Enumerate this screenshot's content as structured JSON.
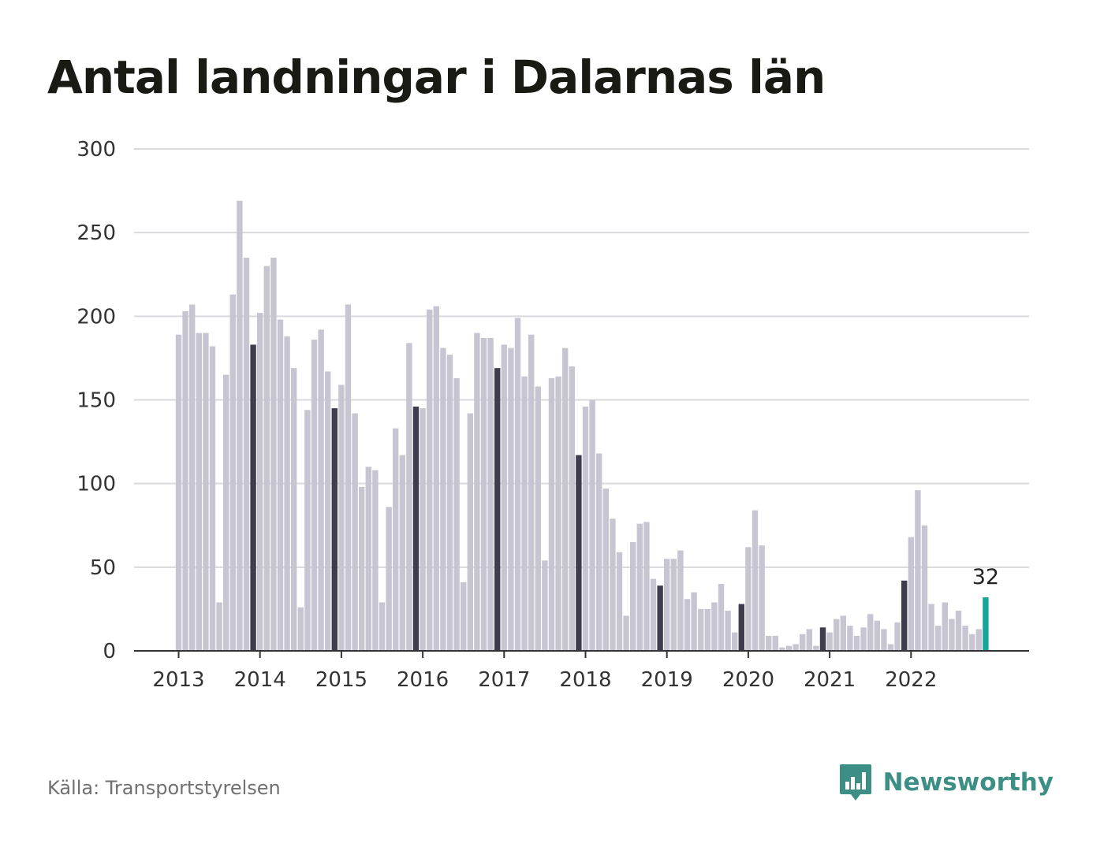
{
  "header": {
    "title": "Antal landningar i Dalarnas län"
  },
  "footer": {
    "source": "Källa: Transportstyrelsen",
    "brand": "Newsworthy"
  },
  "colors": {
    "bar": "#c6c5d1",
    "bar_december": "#3f3d4d",
    "bar_latest": "#16a596",
    "grid": "#d9d9de",
    "axis": "#333333",
    "brand": "#3d8f86"
  },
  "chart_data": {
    "type": "bar",
    "title": "Antal landningar i Dalarnas län",
    "xlabel": "",
    "ylabel": "",
    "ylim": [
      0,
      300
    ],
    "yticks": [
      0,
      50,
      100,
      150,
      200,
      250,
      300
    ],
    "grid": true,
    "legend": "none",
    "year_labels": [
      "2013",
      "2014",
      "2015",
      "2016",
      "2017",
      "2018",
      "2019",
      "2020",
      "2021",
      "2022"
    ],
    "annotation": {
      "label": "32",
      "category": "2022-12"
    },
    "categories": [
      "2013-01",
      "2013-02",
      "2013-03",
      "2013-04",
      "2013-05",
      "2013-06",
      "2013-07",
      "2013-08",
      "2013-09",
      "2013-10",
      "2013-11",
      "2013-12",
      "2014-01",
      "2014-02",
      "2014-03",
      "2014-04",
      "2014-05",
      "2014-06",
      "2014-07",
      "2014-08",
      "2014-09",
      "2014-10",
      "2014-11",
      "2014-12",
      "2015-01",
      "2015-02",
      "2015-03",
      "2015-04",
      "2015-05",
      "2015-06",
      "2015-07",
      "2015-08",
      "2015-09",
      "2015-10",
      "2015-11",
      "2015-12",
      "2016-01",
      "2016-02",
      "2016-03",
      "2016-04",
      "2016-05",
      "2016-06",
      "2016-07",
      "2016-08",
      "2016-09",
      "2016-10",
      "2016-11",
      "2016-12",
      "2017-01",
      "2017-02",
      "2017-03",
      "2017-04",
      "2017-05",
      "2017-06",
      "2017-07",
      "2017-08",
      "2017-09",
      "2017-10",
      "2017-11",
      "2017-12",
      "2018-01",
      "2018-02",
      "2018-03",
      "2018-04",
      "2018-05",
      "2018-06",
      "2018-07",
      "2018-08",
      "2018-09",
      "2018-10",
      "2018-11",
      "2018-12",
      "2019-01",
      "2019-02",
      "2019-03",
      "2019-04",
      "2019-05",
      "2019-06",
      "2019-07",
      "2019-08",
      "2019-09",
      "2019-10",
      "2019-11",
      "2019-12",
      "2020-01",
      "2020-02",
      "2020-03",
      "2020-04",
      "2020-05",
      "2020-06",
      "2020-07",
      "2020-08",
      "2020-09",
      "2020-10",
      "2020-11",
      "2020-12",
      "2021-01",
      "2021-02",
      "2021-03",
      "2021-04",
      "2021-05",
      "2021-06",
      "2021-07",
      "2021-08",
      "2021-09",
      "2021-10",
      "2021-11",
      "2021-12",
      "2022-01",
      "2022-02",
      "2022-03",
      "2022-04",
      "2022-05",
      "2022-06",
      "2022-07",
      "2022-08",
      "2022-09",
      "2022-10",
      "2022-11",
      "2022-12"
    ],
    "values": [
      189,
      203,
      207,
      190,
      190,
      182,
      29,
      165,
      213,
      269,
      235,
      183,
      202,
      230,
      235,
      198,
      188,
      169,
      26,
      144,
      186,
      192,
      167,
      145,
      159,
      207,
      142,
      98,
      110,
      108,
      29,
      86,
      133,
      117,
      184,
      146,
      145,
      204,
      206,
      181,
      177,
      163,
      41,
      142,
      190,
      187,
      187,
      169,
      183,
      181,
      199,
      164,
      189,
      158,
      54,
      163,
      164,
      181,
      170,
      117,
      146,
      150,
      118,
      97,
      79,
      59,
      21,
      65,
      76,
      77,
      43,
      39,
      55,
      55,
      60,
      31,
      35,
      25,
      25,
      29,
      40,
      24,
      11,
      28,
      62,
      84,
      63,
      9,
      9,
      2,
      3,
      4,
      10,
      13,
      3,
      14,
      11,
      19,
      21,
      15,
      9,
      14,
      22,
      18,
      13,
      4,
      17,
      42,
      68,
      96,
      75,
      28,
      15,
      29,
      19,
      24,
      15,
      10,
      13,
      32
    ]
  }
}
